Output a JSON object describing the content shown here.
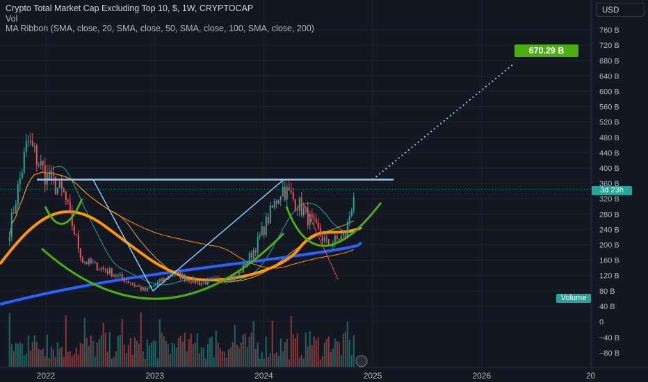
{
  "header": {
    "title": "Crypto Total Market Cap Excluding Top 10, $, 1W, CRYPTOCAP",
    "volume_label": "Vol",
    "ma_ribbon_label": "MA Ribbon (SMA, close, 20, SMA, close, 50, SMA, close, 100, SMA, close, 200)"
  },
  "currency_button": "USD",
  "target_label": "670.29 B",
  "countdown_label": "3d 23h",
  "volume_badge": "Volume",
  "colors": {
    "background": "#131722",
    "up": "#26a69a",
    "down": "#ef5350",
    "ma20": "#26a69a",
    "ma50": "#e8a33c",
    "ma100": "#ff9800",
    "ma200": "#2962ff",
    "trendline": "#90caf9",
    "cup_drawing": "#4caf10",
    "target_tag": "#4caf10"
  },
  "chart_data": {
    "type": "candlestick",
    "title": "Crypto Total Market Cap Excluding Top 10, $, 1W, CRYPTOCAP",
    "x_ticks": [
      "2022",
      "2023",
      "2024",
      "2025",
      "2026",
      "20"
    ],
    "y_ticks_price": [
      "760 B",
      "720 B",
      "680 B",
      "640 B",
      "600 B",
      "560 B",
      "520 B",
      "480 B",
      "440 B",
      "400 B",
      "360 B",
      "320 B",
      "280 B",
      "240 B",
      "200 B",
      "160 B",
      "120 B"
    ],
    "y_ticks_volume": [
      "80 B",
      "40 B",
      "0",
      "−40 B",
      "−80 B"
    ],
    "price_range_B": [
      60,
      790
    ],
    "anchor_points": [
      {
        "date": "2021-09",
        "close": 240
      },
      {
        "date": "2021-11",
        "close": 470
      },
      {
        "date": "2022-01",
        "close": 380
      },
      {
        "date": "2022-03",
        "close": 330
      },
      {
        "date": "2022-05",
        "close": 160
      },
      {
        "date": "2022-08",
        "close": 130
      },
      {
        "date": "2022-12",
        "close": 80
      },
      {
        "date": "2023-03",
        "close": 125
      },
      {
        "date": "2023-06",
        "close": 100
      },
      {
        "date": "2023-10",
        "close": 115
      },
      {
        "date": "2023-12",
        "close": 190
      },
      {
        "date": "2024-03",
        "close": 350
      },
      {
        "date": "2024-05",
        "close": 300
      },
      {
        "date": "2024-08",
        "close": 200
      },
      {
        "date": "2024-10",
        "close": 225
      },
      {
        "date": "2024-11",
        "close": 345
      }
    ],
    "neckline_B": 370,
    "projection_target_B": 670.29,
    "current_price_B": 345,
    "moving_averages": [
      "SMA 20",
      "SMA 50",
      "SMA 100",
      "SMA 200"
    ]
  }
}
